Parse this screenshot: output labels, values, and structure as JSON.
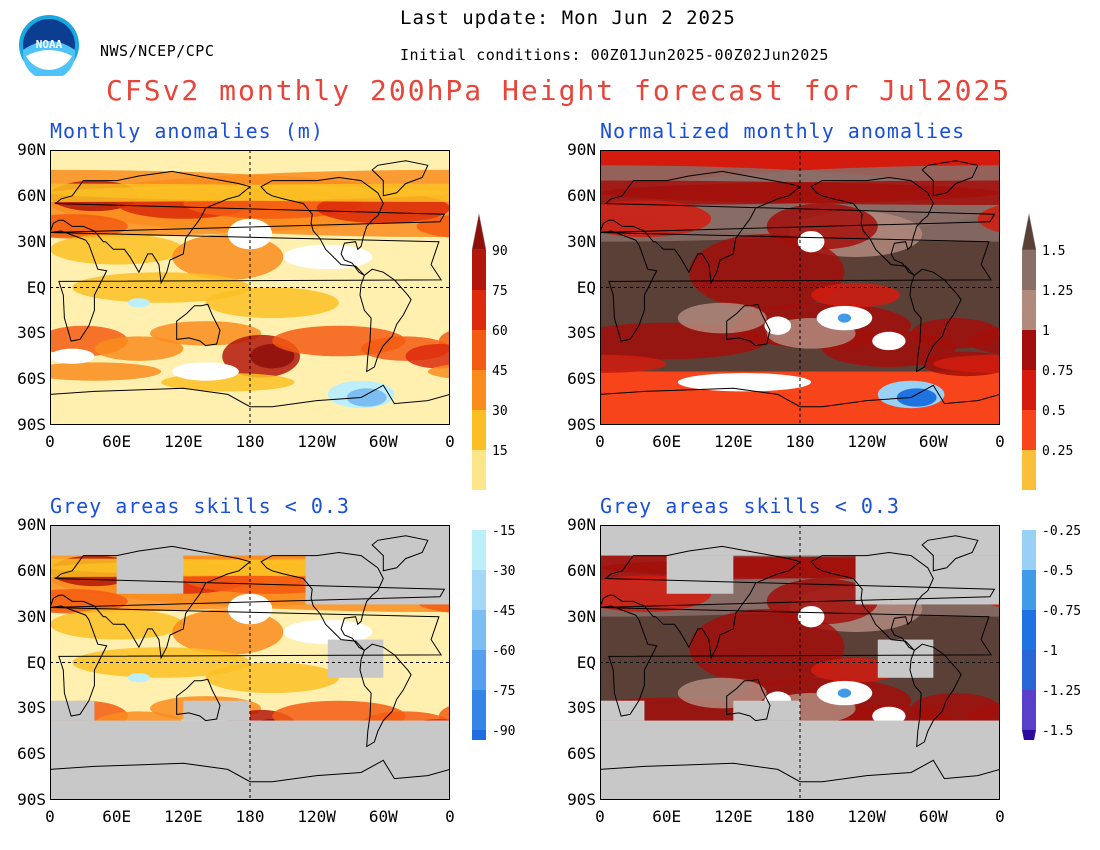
{
  "header": {
    "agency": "NWS/NCEP/CPC",
    "last_update": "Last update: Mon Jun 2 2025",
    "initial_conditions": "Initial conditions: 00Z01Jun2025-00Z02Jun2025",
    "title": "CFSv2 monthly 200hPa Height forecast for Jul2025",
    "logo_text": "NOAA"
  },
  "panels": [
    {
      "title": "Monthly anomalies (m)",
      "kind": "anom",
      "masked": false
    },
    {
      "title": "Normalized monthly anomalies",
      "kind": "norm",
      "masked": false
    },
    {
      "title": "Grey areas skills < 0.3",
      "kind": "anom",
      "masked": true
    },
    {
      "title": "Grey areas skills < 0.3",
      "kind": "norm",
      "masked": true
    }
  ],
  "axes": {
    "lat_ticks": [
      "90N",
      "60N",
      "30N",
      "EQ",
      "30S",
      "60S",
      "90S"
    ],
    "lon_ticks": [
      "0",
      "60E",
      "120E",
      "180",
      "120W",
      "60W",
      "0"
    ]
  },
  "colorbars": {
    "anomaly": {
      "labels": [
        "90",
        "75",
        "60",
        "45",
        "30",
        "15",
        "-15",
        "-30",
        "-45",
        "-60",
        "-75",
        "-90"
      ],
      "warm_colors": [
        "#fde68a",
        "#fbbf24",
        "#f98c1d",
        "#f45a12",
        "#dc2a0c",
        "#b3170b",
        "#8e0f0b"
      ],
      "cool_colors": [
        "#bdeffa",
        "#a3d9f6",
        "#7cbef2",
        "#55a0ee",
        "#3585e8",
        "#1f6de0",
        "#2368d8"
      ]
    },
    "normalized": {
      "labels": [
        "1.5",
        "1.25",
        "1",
        "0.75",
        "0.5",
        "0.25",
        "-0.25",
        "-0.5",
        "-0.75",
        "-1",
        "-1.25",
        "-1.5"
      ],
      "warm_colors": [
        "#fbbf3a",
        "#f7441a",
        "#d41b0e",
        "#a30f0c",
        "#b18a7e",
        "#8a6f68",
        "#5b4038"
      ],
      "cool_colors": [
        "#99d0f6",
        "#3f9ae8",
        "#1f73e0",
        "#2766d6",
        "#5a3fc8",
        "#2b0a9c"
      ]
    }
  },
  "colors": {
    "ocean_anom": "#fff0b0",
    "land_line": "#000000",
    "skill_mask": "#c8c8c8",
    "title_red": "#e8453a",
    "panel_title_blue": "#1a4fd8"
  }
}
